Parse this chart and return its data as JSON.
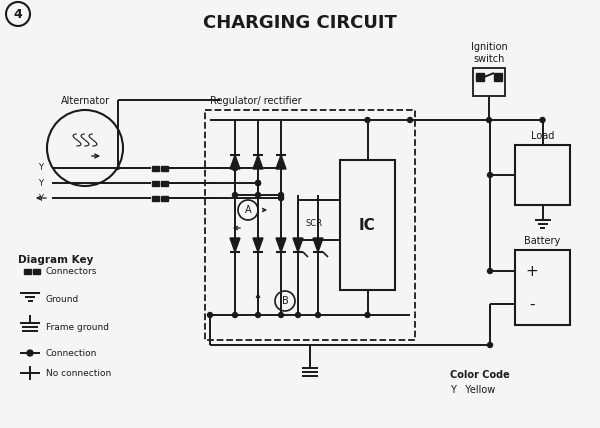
{
  "title": "CHARGING CIRCUIT",
  "title_fontsize": 13,
  "title_fontweight": "bold",
  "background_color": "#f5f5f5",
  "line_color": "#1a1a1a",
  "fig_number": "4",
  "labels": {
    "alternator": "Alternator",
    "regulator": "Regulator/ rectifier",
    "ignition": "Ignition\nswitch",
    "load": "Load",
    "battery": "Battery",
    "ic": "IC",
    "scr": "SCR",
    "node_a": "A",
    "node_b": "B",
    "color_code_title": "Color Code",
    "color_code_y": "Y   Yellow",
    "diagram_key": "Diagram Key",
    "connectors": "Connectors",
    "ground": "Ground",
    "frame_ground": "Frame ground",
    "connection": "Connection",
    "no_connection": "No connection"
  }
}
